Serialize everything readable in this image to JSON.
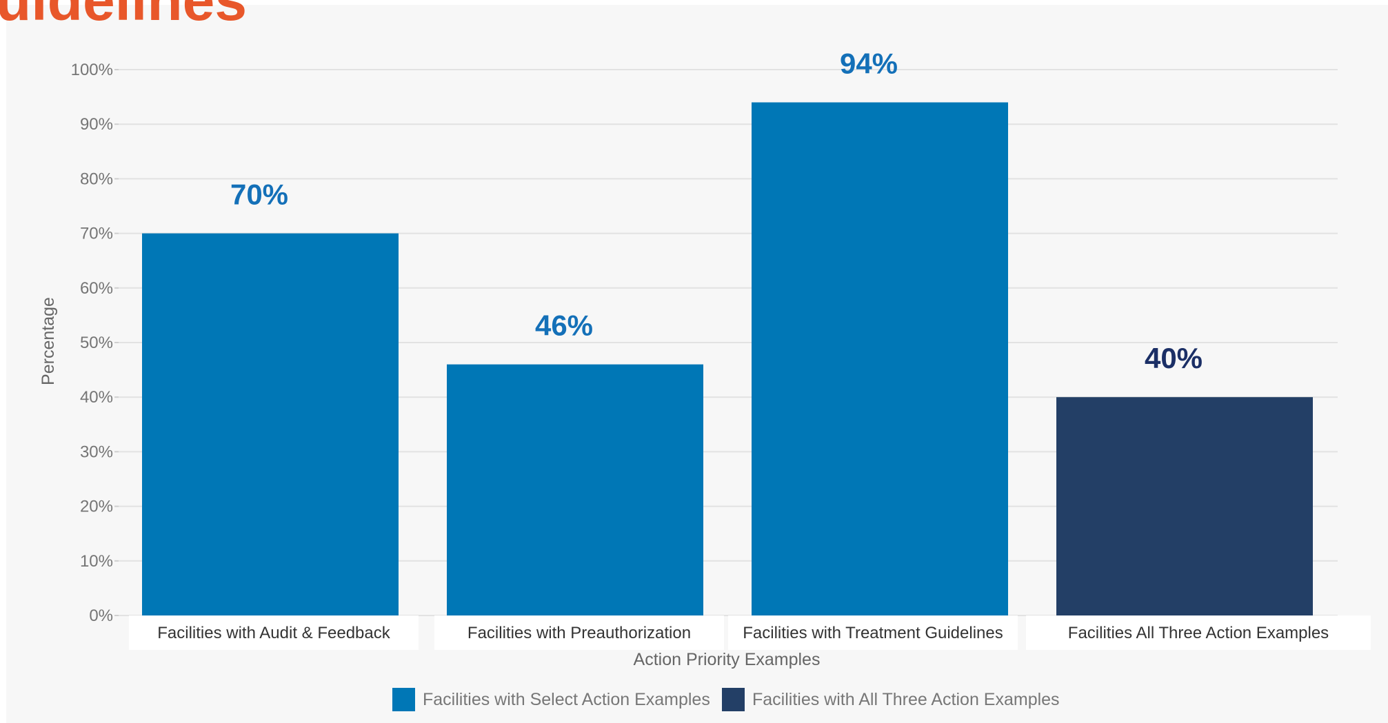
{
  "page_heading": "uidelines",
  "chart_data": {
    "type": "bar",
    "categories": [
      "Facilities with Audit & Feedback",
      "Facilities with Preauthorization",
      "Facilities with Treatment Guidelines",
      "Facilities All Three Action Examples"
    ],
    "values": [
      70,
      46,
      94,
      40
    ],
    "data_labels": [
      "70%",
      "46%",
      "94%",
      "40%"
    ],
    "bar_series": [
      0,
      0,
      0,
      1
    ],
    "series": [
      {
        "name": "Facilities with Select Action Examples",
        "color": "#0077b6"
      },
      {
        "name": "Facilities with All Three Action Examples",
        "color": "#233f66"
      }
    ],
    "label_colors": [
      "#1470b8",
      "#1470b8",
      "#1470b8",
      "#1b2f66"
    ],
    "xlabel": "Action Priority Examples",
    "ylabel": "Percentage",
    "ylim": [
      0,
      100
    ],
    "yticks": [
      0,
      10,
      20,
      30,
      40,
      50,
      60,
      70,
      80,
      90,
      100
    ],
    "ytick_labels": [
      "0%",
      "10%",
      "20%",
      "30%",
      "40%",
      "50%",
      "60%",
      "70%",
      "80%",
      "90%",
      "100%"
    ],
    "grid": true,
    "legend_position": "bottom-center"
  }
}
